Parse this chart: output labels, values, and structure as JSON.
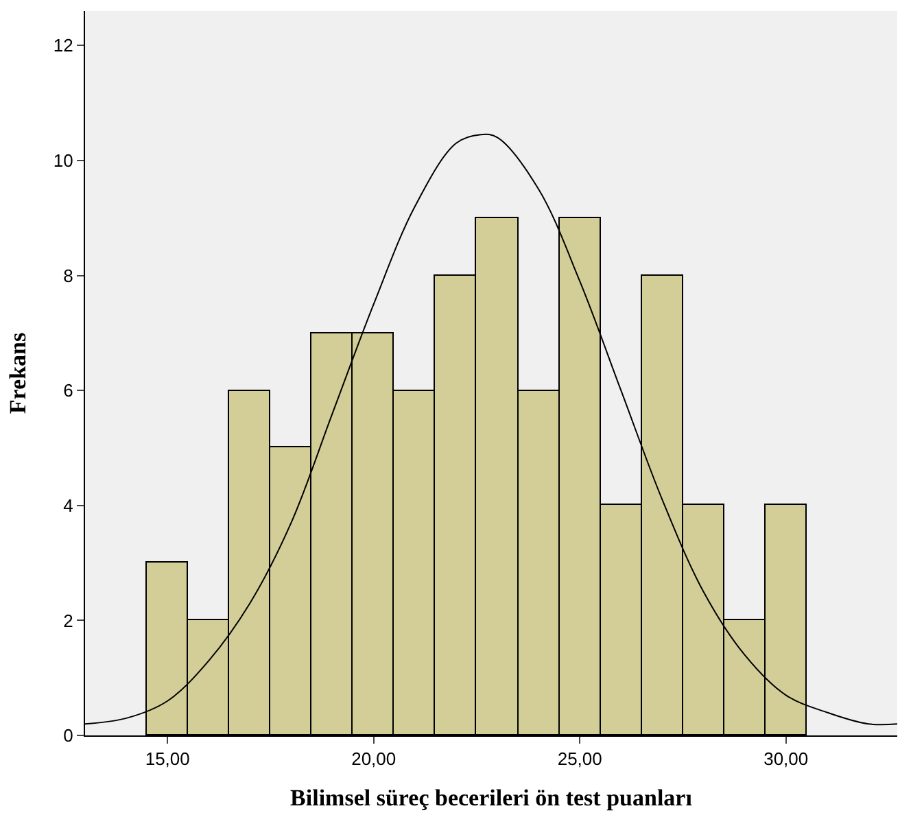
{
  "chart_data": {
    "type": "histogram",
    "xlabel": "Bilimsel süreç becerileri ön test puanları",
    "ylabel": "Frekans",
    "bins": [
      14.5,
      15.5,
      16.5,
      17.5,
      18.5,
      19.5,
      20.5,
      21.5,
      22.5,
      23.5,
      24.5,
      25.5,
      26.5,
      27.5,
      28.5,
      29.5,
      30.5
    ],
    "values": [
      3,
      2,
      6,
      5,
      7,
      7,
      6,
      8,
      9,
      6,
      9,
      4,
      8,
      4,
      2,
      4
    ],
    "color": "#d3ce97",
    "series": [
      {
        "type": "line",
        "color": "#000000",
        "x": [
          13,
          14,
          15,
          16,
          17,
          18,
          19,
          20,
          21,
          22,
          22.6,
          23,
          24,
          25,
          26,
          27,
          28,
          29,
          30,
          31,
          32,
          32.7
        ],
        "values": [
          0.2,
          0.3,
          0.6,
          1.3,
          2.3,
          3.7,
          5.6,
          7.5,
          9.2,
          10.3,
          10.45,
          10.4,
          9.5,
          7.9,
          6.0,
          4.1,
          2.5,
          1.4,
          0.7,
          0.4,
          0.2,
          0.2
        ]
      }
    ],
    "xlim": [
      13,
      32.7
    ],
    "ylim": [
      0,
      12.6
    ],
    "xticks": [
      {
        "value": 15,
        "label": "15,00"
      },
      {
        "value": 20,
        "label": "20,00"
      },
      {
        "value": 25,
        "label": "25,00"
      },
      {
        "value": 30,
        "label": "30,00"
      }
    ],
    "yticks": [
      0,
      2,
      4,
      6,
      8,
      10,
      12
    ],
    "grid": false
  }
}
